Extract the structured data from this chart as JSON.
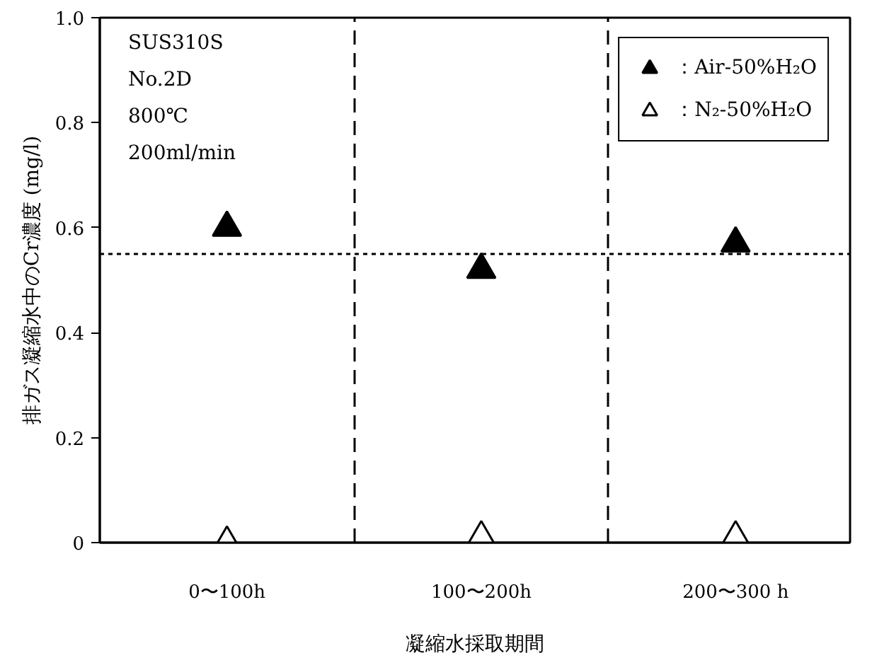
{
  "chart_data": {
    "type": "scatter",
    "xlabel": "凝縮水採取期間",
    "ylabel": "排ガス凝縮水中のCr濃度 (mg/l)",
    "categories": [
      "0〜100h",
      "100〜200h",
      "200〜300 h"
    ],
    "ylim": [
      0,
      1.0
    ],
    "yticks": [
      0,
      0.2,
      0.4,
      0.6,
      0.8,
      {
        "value": 1.0,
        "label": "1.0"
      }
    ],
    "series": [
      {
        "name": "：Air-50%H₂O",
        "color": "#000000",
        "values": [
          0.6,
          0.52,
          0.57
        ],
        "marker": "triangle"
      },
      {
        "name": "：N₂-50%H₂O",
        "color": "#ffffff",
        "values": [
          0,
          0.01,
          0.01
        ],
        "marker": "triangle"
      }
    ],
    "ref_lines": [
      {
        "axis": "y",
        "value": 0.55,
        "line_style": "dotted",
        "color": "#000000"
      }
    ],
    "annotations": [
      "SUS310S",
      "No.2D",
      "800℃",
      "200ml/min"
    ],
    "grid": "x",
    "legend": "top right"
  }
}
